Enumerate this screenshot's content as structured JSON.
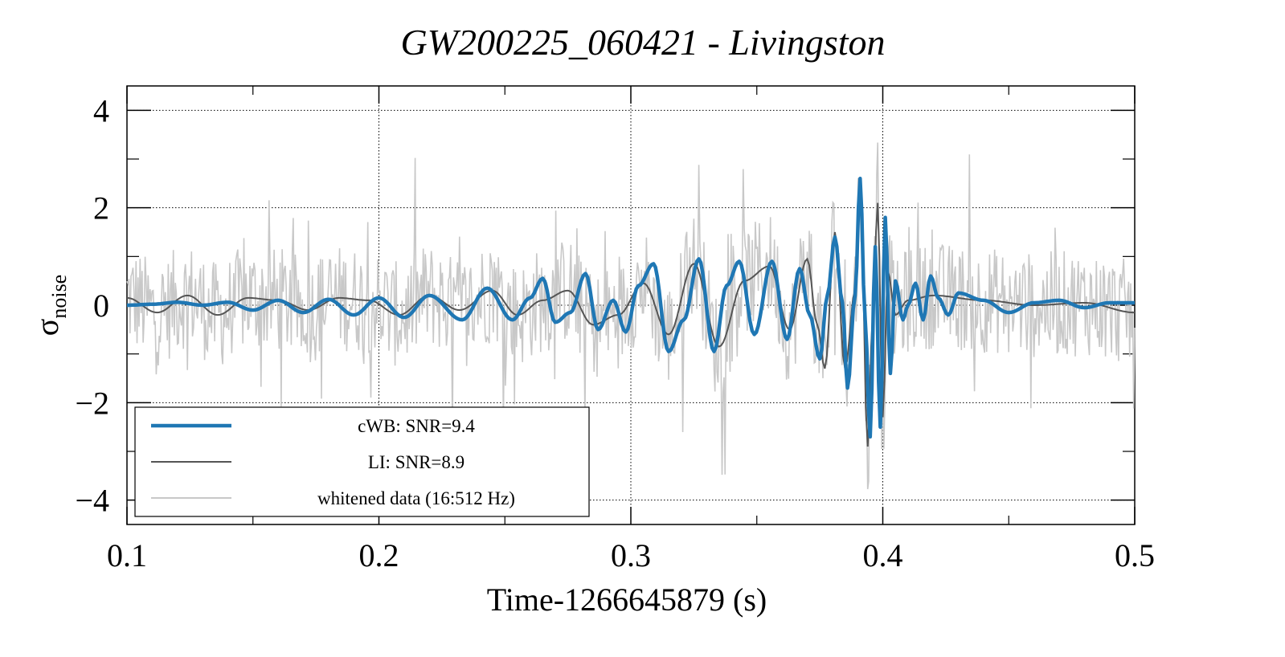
{
  "chart_data": {
    "type": "line",
    "title": "GW200225_060421 - Livingston",
    "xlabel": "Time-1266645879 (s)",
    "ylabel": "σ",
    "ylabel_subscript": "noise",
    "xlim": [
      0.1,
      0.5
    ],
    "ylim": [
      -4.5,
      4.5
    ],
    "grid": true,
    "x_tick_values": [
      0.1,
      0.2,
      0.3,
      0.4,
      0.5
    ],
    "x_tick_labels": [
      "0.1",
      "0.2",
      "0.3",
      "0.4",
      "0.5"
    ],
    "y_tick_values": [
      -4,
      -2,
      0,
      2,
      4
    ],
    "y_tick_labels": [
      "−4",
      "−2",
      "0",
      "2",
      "4"
    ],
    "legend_position": "bottom-left",
    "series": [
      {
        "name": "cWB: SNR=9.4",
        "color": "#1f77b4",
        "style": "thick",
        "x": [
          0.1,
          0.11,
          0.12,
          0.13,
          0.14,
          0.15,
          0.16,
          0.17,
          0.18,
          0.19,
          0.2,
          0.21,
          0.22,
          0.233,
          0.243,
          0.253,
          0.26,
          0.265,
          0.27,
          0.276,
          0.282,
          0.287,
          0.293,
          0.298,
          0.303,
          0.309,
          0.315,
          0.321,
          0.327,
          0.333,
          0.338,
          0.343,
          0.349,
          0.356,
          0.362,
          0.367,
          0.371,
          0.375,
          0.378,
          0.381,
          0.384,
          0.386,
          0.389,
          0.391,
          0.393,
          0.395,
          0.397,
          0.399,
          0.401,
          0.403,
          0.405,
          0.408,
          0.41,
          0.413,
          0.416,
          0.419,
          0.422,
          0.426,
          0.43,
          0.44,
          0.45,
          0.46,
          0.47,
          0.48,
          0.49,
          0.5
        ],
        "values": [
          0.0,
          0.02,
          0.06,
          0.0,
          0.06,
          -0.1,
          0.1,
          -0.15,
          0.12,
          -0.2,
          0.15,
          -0.25,
          0.2,
          -0.3,
          0.35,
          -0.3,
          0.15,
          0.55,
          -0.35,
          -0.15,
          0.65,
          -0.5,
          0.1,
          -0.55,
          0.4,
          0.85,
          -0.95,
          -0.3,
          0.95,
          -0.95,
          0.4,
          0.9,
          -0.6,
          0.9,
          -0.7,
          0.75,
          -0.2,
          -1.1,
          0.2,
          1.4,
          0.05,
          -1.7,
          0.2,
          2.6,
          -0.3,
          -2.7,
          1.2,
          -2.5,
          1.8,
          -1.4,
          0.5,
          -0.3,
          0.0,
          0.45,
          -0.3,
          0.6,
          0.15,
          -0.2,
          0.25,
          0.1,
          -0.15,
          0.05,
          0.1,
          -0.05,
          0.05,
          0.05
        ]
      },
      {
        "name": "LI: SNR=8.9",
        "color": "#555555",
        "style": "thin",
        "x": [
          0.1,
          0.112,
          0.124,
          0.136,
          0.148,
          0.16,
          0.172,
          0.184,
          0.196,
          0.208,
          0.22,
          0.232,
          0.245,
          0.255,
          0.265,
          0.275,
          0.285,
          0.295,
          0.305,
          0.315,
          0.325,
          0.335,
          0.345,
          0.355,
          0.363,
          0.37,
          0.374,
          0.377,
          0.381,
          0.385,
          0.389,
          0.391,
          0.394,
          0.396,
          0.398,
          0.4,
          0.402,
          0.405,
          0.41,
          0.42,
          0.44,
          0.46,
          0.48,
          0.5
        ],
        "values": [
          0.15,
          -0.15,
          0.2,
          -0.2,
          0.15,
          0.1,
          -0.1,
          0.15,
          0.1,
          -0.2,
          0.2,
          -0.1,
          0.3,
          -0.2,
          0.1,
          0.3,
          -0.4,
          -0.2,
          0.45,
          -0.6,
          0.85,
          -0.85,
          0.5,
          0.8,
          -0.5,
          0.95,
          -0.4,
          -1.3,
          1.5,
          -1.3,
          0.3,
          2.6,
          -2.9,
          -0.2,
          2.1,
          -2.3,
          0.7,
          -0.2,
          0.1,
          0.2,
          0.1,
          0.0,
          0.05,
          -0.15
        ]
      },
      {
        "name": "whitened data (16:512 Hz)",
        "color": "#c8c8c8",
        "style": "thin",
        "x": [],
        "values": []
      }
    ]
  }
}
